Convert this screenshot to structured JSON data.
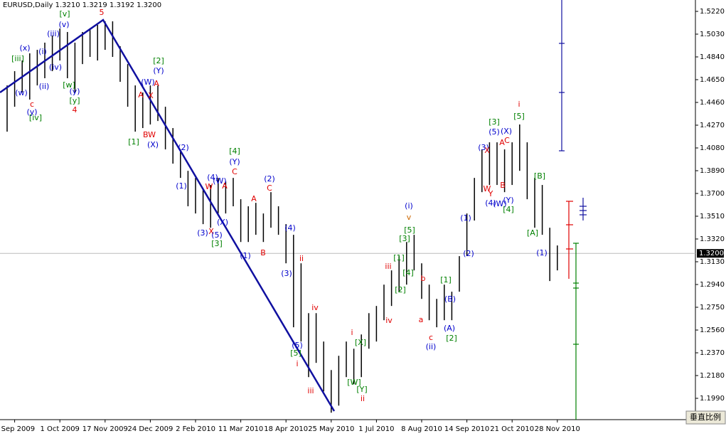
{
  "chart_data": {
    "type": "hl-bars",
    "title": "EURUSD,Daily  1.3210 1.3219 1.3192 1.3200",
    "scale_button": "垂直比例",
    "bar_color": "#000000",
    "categories": [
      null,
      "3 Sep 2009",
      null,
      null,
      null,
      null,
      null,
      "1 Oct 2009",
      null,
      null,
      null,
      null,
      null,
      "17 Nov 2009",
      null,
      null,
      null,
      null,
      null,
      "24 Dec 2009",
      null,
      null,
      null,
      null,
      null,
      "2 Feb 2010",
      null,
      null,
      null,
      null,
      null,
      "11 Mar 2010",
      null,
      null,
      null,
      null,
      null,
      "18 Apr 2010",
      null,
      null,
      null,
      null,
      null,
      "25 May 2010",
      null,
      null,
      null,
      null,
      null,
      "1 Jul 2010",
      null,
      null,
      null,
      null,
      null,
      "8 Aug 2010",
      null,
      null,
      null,
      null,
      null,
      "14 Sep 2010",
      null,
      null,
      null,
      null,
      null,
      "21 Oct 2010",
      null,
      null,
      null,
      null,
      null,
      "28 Nov 2010"
    ],
    "highs": [
      1.4602,
      1.4721,
      1.481,
      1.487,
      1.4899,
      1.4959,
      1.5018,
      1.5077,
      1.5048,
      1.4959,
      1.5048,
      1.5077,
      1.5107,
      1.5137,
      1.5137,
      1.4929,
      1.478,
      1.4602,
      1.4543,
      1.4602,
      1.4602,
      1.4424,
      1.4246,
      1.4068,
      1.3889,
      1.383,
      1.3741,
      1.3771,
      1.383,
      1.38,
      1.383,
      1.3652,
      1.3593,
      1.3622,
      1.3533,
      1.3711,
      1.3593,
      1.3444,
      1.3355,
      1.3117,
      1.2701,
      1.2701,
      1.2464,
      1.2226,
      1.2345,
      1.2464,
      1.2404,
      1.2523,
      1.2701,
      1.2761,
      1.2939,
      1.3058,
      1.3177,
      1.3295,
      1.3355,
      1.3117,
      1.2939,
      1.282,
      1.2939,
      1.288,
      1.3177,
      1.3533,
      1.383,
      1.4068,
      1.4127,
      1.4127,
      1.4068,
      1.4127,
      1.4276,
      1.4127,
      1.383,
      1.3771,
      1.3414,
      1.3266
    ],
    "lows": [
      1.4216,
      1.4424,
      1.4543,
      1.4484,
      1.4602,
      1.4662,
      1.4721,
      1.481,
      1.4662,
      1.4543,
      1.478,
      1.484,
      1.481,
      1.4899,
      1.484,
      1.4632,
      1.4424,
      1.4216,
      1.4246,
      1.4276,
      1.4305,
      1.4068,
      1.3949,
      1.383,
      1.3593,
      1.3533,
      1.3444,
      1.3414,
      1.3533,
      1.3533,
      1.3593,
      1.3295,
      1.3295,
      1.3355,
      1.3295,
      1.3414,
      1.3355,
      1.3117,
      1.2583,
      1.2464,
      1.2167,
      1.2286,
      1.2048,
      1.187,
      1.1929,
      1.2167,
      1.2107,
      1.2167,
      1.2404,
      1.2464,
      1.2642,
      1.2761,
      1.288,
      1.2939,
      1.3058,
      1.282,
      1.2642,
      1.2583,
      1.2642,
      1.2642,
      1.288,
      1.3177,
      1.3474,
      1.3711,
      1.3771,
      1.3771,
      1.3711,
      1.3771,
      1.3889,
      1.3652,
      1.3414,
      1.3355,
      1.2969,
      1.3058
    ],
    "ylim": [
      1.1812,
      1.5315
    ],
    "yticks": [
      {
        "value": 1.522,
        "label": "1.5220"
      },
      {
        "value": 1.503,
        "label": "1.5030"
      },
      {
        "value": 1.484,
        "label": "1.4840"
      },
      {
        "value": 1.465,
        "label": "1.4650"
      },
      {
        "value": 1.446,
        "label": "1.4460"
      },
      {
        "value": 1.427,
        "label": "1.4270"
      },
      {
        "value": 1.408,
        "label": "1.4080"
      },
      {
        "value": 1.389,
        "label": "1.3890"
      },
      {
        "value": 1.37,
        "label": "1.3700"
      },
      {
        "value": 1.351,
        "label": "1.3510"
      },
      {
        "value": 1.332,
        "label": "1.3320"
      },
      {
        "value": 1.313,
        "label": "1.3130"
      },
      {
        "value": 1.294,
        "label": "1.2940"
      },
      {
        "value": 1.275,
        "label": "1.2750"
      },
      {
        "value": 1.256,
        "label": "1.2560"
      },
      {
        "value": 1.237,
        "label": "1.2370"
      },
      {
        "value": 1.218,
        "label": "1.2180"
      },
      {
        "value": 1.199,
        "label": "1.1990"
      }
    ],
    "last_price": {
      "value": 1.32,
      "label": "1.3200"
    },
    "annotations": [
      {
        "text": "5",
        "color": "#e00000"
      },
      {
        "text": "[v]",
        "color": "#008000"
      },
      {
        "text": "(v)",
        "color": "#0000cc"
      },
      {
        "text": "(iii)",
        "color": "#0000cc"
      },
      {
        "text": "(x)",
        "color": "#0000cc"
      },
      {
        "text": "(i)",
        "color": "#0000cc"
      },
      {
        "text": "[iii]",
        "color": "#008000"
      },
      {
        "text": "(iv)",
        "color": "#0000cc"
      },
      {
        "text": "(ii)",
        "color": "#0000cc"
      },
      {
        "text": "(w)",
        "color": "#0000cc"
      },
      {
        "text": "c",
        "color": "#e00000"
      },
      {
        "text": "(y)",
        "color": "#0000cc"
      },
      {
        "text": "[iv]",
        "color": "#008000"
      },
      {
        "text": "[w]",
        "color": "#008000"
      },
      {
        "text": "(y)",
        "color": "#0000cc"
      },
      {
        "text": "[y]",
        "color": "#008000"
      },
      {
        "text": "4",
        "color": "#e00000"
      },
      {
        "text": "[2]",
        "color": "#008000"
      },
      {
        "text": "(Y)",
        "color": "#0000cc"
      },
      {
        "text": "(W)",
        "color": "#0000cc"
      },
      {
        "text": "A",
        "color": "#e00000"
      },
      {
        "text": "X",
        "color": "#e00000"
      },
      {
        "text": "A",
        "color": "#e00000"
      },
      {
        "text": "BW",
        "color": "#e00000"
      },
      {
        "text": "(X)",
        "color": "#0000cc"
      },
      {
        "text": "[1]",
        "color": "#008000"
      },
      {
        "text": "(2)",
        "color": "#0000cc"
      },
      {
        "text": "[4]",
        "color": "#008000"
      },
      {
        "text": "(Y)",
        "color": "#0000cc"
      },
      {
        "text": "C",
        "color": "#e00000"
      },
      {
        "text": "(2)",
        "color": "#0000cc"
      },
      {
        "text": "C",
        "color": "#e00000"
      },
      {
        "text": "(4)",
        "color": "#0000cc"
      },
      {
        "text": "(W)",
        "color": "#0000cc"
      },
      {
        "text": "A",
        "color": "#e00000"
      },
      {
        "text": "W",
        "color": "#e00000"
      },
      {
        "text": "(1)",
        "color": "#0000cc"
      },
      {
        "text": "A",
        "color": "#e00000"
      },
      {
        "text": "(3)",
        "color": "#0000cc"
      },
      {
        "text": "X",
        "color": "#e00000"
      },
      {
        "text": "(X)",
        "color": "#0000cc"
      },
      {
        "text": "(5)",
        "color": "#0000cc"
      },
      {
        "text": "[3]",
        "color": "#008000"
      },
      {
        "text": "(1)",
        "color": "#0000cc"
      },
      {
        "text": "B",
        "color": "#e00000"
      },
      {
        "text": "(4)",
        "color": "#0000cc"
      },
      {
        "text": "ii",
        "color": "#e00000"
      },
      {
        "text": "(3)",
        "color": "#0000cc"
      },
      {
        "text": "iv",
        "color": "#e00000"
      },
      {
        "text": "(5)",
        "color": "#0000cc"
      },
      {
        "text": "[5]",
        "color": "#008000"
      },
      {
        "text": "i",
        "color": "#e00000"
      },
      {
        "text": "iii",
        "color": "#e00000"
      },
      {
        "text": "i",
        "color": "#e00000"
      },
      {
        "text": "[X]",
        "color": "#008000"
      },
      {
        "text": "[W]",
        "color": "#008000"
      },
      {
        "text": "[Y]",
        "color": "#008000"
      },
      {
        "text": "ii",
        "color": "#e00000"
      },
      {
        "text": "iii",
        "color": "#e00000"
      },
      {
        "text": "iv",
        "color": "#e00000"
      },
      {
        "text": "(i)",
        "color": "#0000cc"
      },
      {
        "text": "v",
        "color": "#cc6600"
      },
      {
        "text": "[5]",
        "color": "#008000"
      },
      {
        "text": "[3]",
        "color": "#008000"
      },
      {
        "text": "[1]",
        "color": "#008000"
      },
      {
        "text": "[4]",
        "color": "#008000"
      },
      {
        "text": "[2]",
        "color": "#008000"
      },
      {
        "text": "b",
        "color": "#e00000"
      },
      {
        "text": "a",
        "color": "#e00000"
      },
      {
        "text": "c",
        "color": "#e00000"
      },
      {
        "text": "(ii)",
        "color": "#0000cc"
      },
      {
        "text": "[1]",
        "color": "#008000"
      },
      {
        "text": "(B)",
        "color": "#0000cc"
      },
      {
        "text": "(A)",
        "color": "#0000cc"
      },
      {
        "text": "[2]",
        "color": "#008000"
      },
      {
        "text": "(2)",
        "color": "#0000cc"
      },
      {
        "text": "(1)",
        "color": "#0000cc"
      },
      {
        "text": "(3)",
        "color": "#0000cc"
      },
      {
        "text": "X",
        "color": "#e00000"
      },
      {
        "text": "W",
        "color": "#e00000"
      },
      {
        "text": "Y",
        "color": "#e00000"
      },
      {
        "text": "(4)",
        "color": "#0000cc"
      },
      {
        "text": "(W)",
        "color": "#0000cc"
      },
      {
        "text": "B",
        "color": "#e00000"
      },
      {
        "text": "[4]",
        "color": "#008000"
      },
      {
        "text": "(Y)",
        "color": "#0000cc"
      },
      {
        "text": "[3]",
        "color": "#008000"
      },
      {
        "text": "(5)",
        "color": "#0000cc"
      },
      {
        "text": "(X)",
        "color": "#0000cc"
      },
      {
        "text": "A",
        "color": "#e00000"
      },
      {
        "text": "C",
        "color": "#e00000"
      },
      {
        "text": "i",
        "color": "#e00000"
      },
      {
        "text": "[5]",
        "color": "#008000"
      },
      {
        "text": "[B]",
        "color": "#008000"
      },
      {
        "text": "[A]",
        "color": "#008000"
      },
      {
        "text": "(1)",
        "color": "#0000cc"
      }
    ]
  }
}
